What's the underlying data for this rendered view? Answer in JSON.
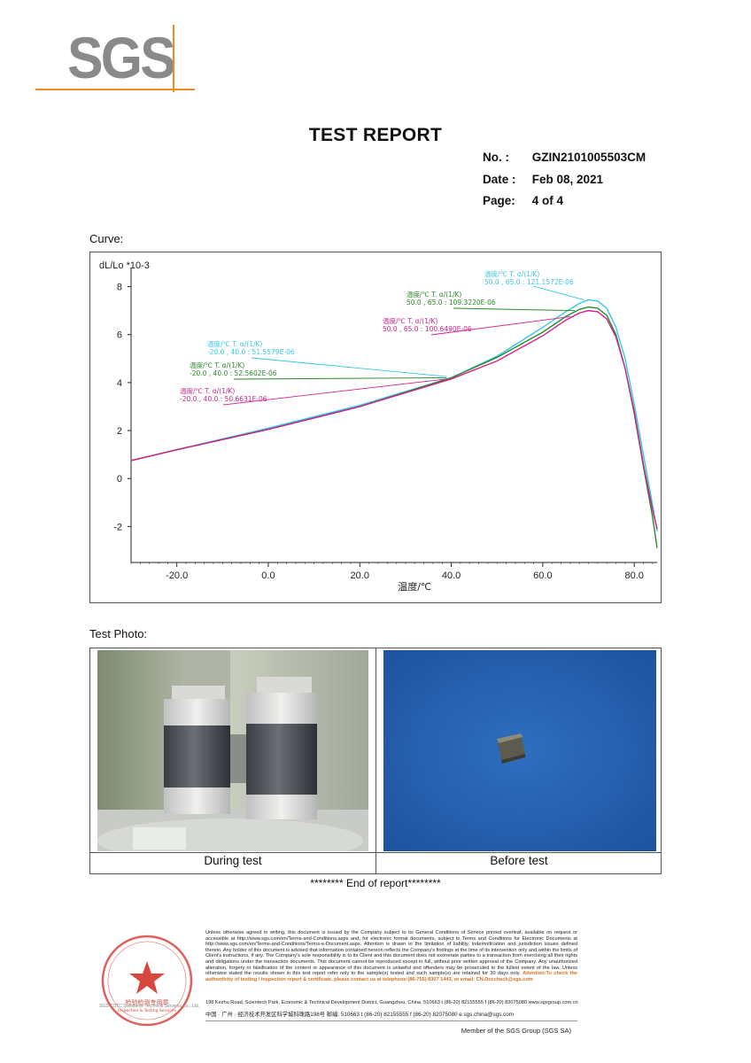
{
  "header": {
    "logo": "SGS",
    "title": "TEST REPORT",
    "no_label": "No. :",
    "no_value": "GZIN2101005503CM",
    "date_label": "Date :",
    "date_value": "Feb 08, 2021",
    "page_label": "Page:",
    "page_value": "4 of 4"
  },
  "curve_label": "Curve:",
  "chart_data": {
    "type": "line",
    "ylabel": "dL/Lo *10-3",
    "xlabel": "温度/℃",
    "xlim": [
      -30,
      85
    ],
    "ylim": [
      -3.5,
      8.5
    ],
    "x_ticks": [
      "-20.0",
      "0.0",
      "20.0",
      "40.0",
      "60.0",
      "80.0"
    ],
    "y_ticks": [
      "8",
      "6",
      "4",
      "2",
      "0",
      "-2"
    ],
    "colors": {
      "cyan": "#35c8e8",
      "green": "#2a8a2a",
      "magenta": "#d0228a"
    },
    "series": [
      {
        "color": "#35c8e8",
        "x": [
          -30,
          -20,
          0,
          20,
          40,
          50,
          60,
          65,
          68,
          70,
          72,
          74,
          76,
          78,
          80,
          82,
          84,
          85
        ],
        "y": [
          0.75,
          1.2,
          2.1,
          3.05,
          4.2,
          5.1,
          6.3,
          6.95,
          7.3,
          7.45,
          7.4,
          7.1,
          6.3,
          5.0,
          3.1,
          1.0,
          -1.1,
          -2.2
        ]
      },
      {
        "color": "#2a8a2a",
        "x": [
          -30,
          -20,
          0,
          20,
          40,
          50,
          60,
          65,
          68,
          70,
          72,
          74,
          76,
          78,
          80,
          82,
          84,
          85
        ],
        "y": [
          0.75,
          1.2,
          2.05,
          3.0,
          4.2,
          5.05,
          6.1,
          6.75,
          7.05,
          7.15,
          7.1,
          6.8,
          6.0,
          4.6,
          2.7,
          0.5,
          -1.6,
          -2.9
        ]
      },
      {
        "color": "#d0228a",
        "x": [
          -30,
          -20,
          0,
          20,
          40,
          50,
          60,
          65,
          68,
          70,
          72,
          74,
          76,
          78,
          80,
          82,
          84,
          85
        ],
        "y": [
          0.75,
          1.2,
          2.05,
          3.0,
          4.15,
          4.9,
          5.95,
          6.6,
          6.9,
          7.0,
          6.95,
          6.65,
          5.9,
          4.6,
          2.8,
          0.6,
          -1.3,
          -2.1
        ]
      }
    ],
    "annotations": [
      {
        "color": "#35c8e8",
        "head": "温度/℃    T. α/(1/K)",
        "line": "50.0 , 65.0 : 121.1572E-06"
      },
      {
        "color": "#2a8a2a",
        "head": "温度/℃    T. α/(1/K)",
        "line": "50.0 , 65.0 : 109.3220E-06"
      },
      {
        "color": "#d0228a",
        "head": "温度/℃    T. α/(1/K)",
        "line": "50.0 , 65.0 : 100.6490E-06"
      },
      {
        "color": "#35c8e8",
        "head": "温度/℃    T. α/(1/K)",
        "line": "-20.0 , 40.0 : 51.5579E-06"
      },
      {
        "color": "#2a8a2a",
        "head": "温度/℃    T. α/(1/K)",
        "line": "-20.0 , 40.0 : 52.5602E-06"
      },
      {
        "color": "#d0228a",
        "head": "温度/℃    T. α/(1/K)",
        "line": "-20.0 , 40.0 : 50.6631E-06"
      }
    ]
  },
  "photo_label": "Test Photo:",
  "photos": {
    "left_caption": "During test",
    "right_caption": "Before test"
  },
  "end_text": "******** End of report********",
  "footer": {
    "disclaimer": "Unless otherwise agreed in writing, this document is issued by the Company subject to its General Conditions of Service printed overleaf, available on request or accessible at http://www.sgs.com/en/Terms-and-Conditions.aspx and, for electronic format documents, subject to Terms and Conditions for Electronic Documents at http://www.sgs.com/en/Terms-and-Conditions/Terms-e-Document.aspx. Attention is drawn to the limitation of liability, indemnification and jurisdiction issues defined therein. Any holder of this document is advised that information contained hereon reflects the Company's findings at the time of its intervention only and within the limits of Client's instructions, if any. The Company's sole responsibility is to its Client and this document does not exonerate parties to a transaction from exercising all their rights and obligations under the transaction documents. This document cannot be reproduced except in full, without prior written approval of the Company. Any unauthorized alteration, forgery or falsification of the content or appearance of this document is unlawful and offenders may be prosecuted to the fullest extent of the law. Unless otherwise stated the results shown in this test report refer only to the sample(s) tested and such sample(s) are retained for 30 days only.",
    "attention": "Attention:To check the authenticity of testing / inspection report & certificate, please contact us at telephone:(86-755) 8307 1443, or email: CN.Doccheck@sgs.com",
    "address_en": "198 Kezhu Road, Scientech Park, Economic & Technical Development District, Guangzhou, China.   510663   t (86-20) 82155555   f (86-20) 82075080     www.sgsgroup.com.cn",
    "address_cn": "中国 · 广州 · 经济技术开发区科学城科珠路198号       邮编: 510663   t (86-20) 82155555   f (86-20) 82075080     e  sgs.china@sgs.com",
    "lab_name": "SGS-CSTC Standards Technical Services Co., Ltd.",
    "member": "Member of the SGS Group (SGS SA)",
    "stamp_text": "检验检测专用章",
    "stamp_sub": "Inspection & Testing Services"
  }
}
